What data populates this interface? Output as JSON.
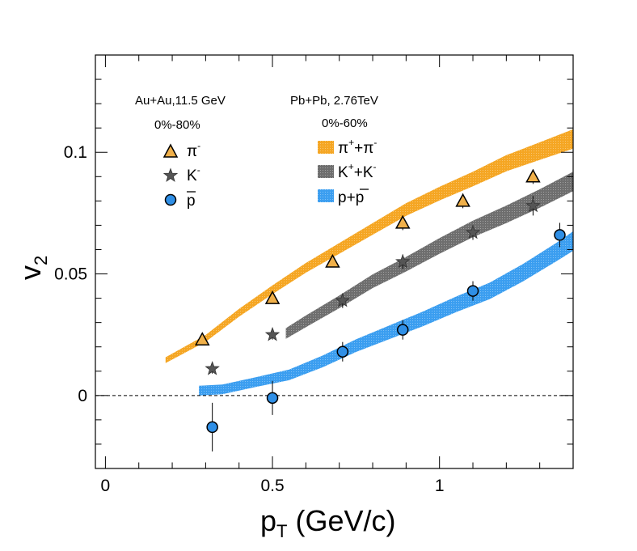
{
  "chart_data": {
    "type": "scatter",
    "xlabel": {
      "main": "p",
      "sub": "T",
      "rest": " (GeV/c)"
    },
    "ylabel": {
      "main": "v",
      "sub": "2"
    },
    "xlim": [
      -0.03,
      1.4
    ],
    "ylim": [
      -0.03,
      0.14
    ],
    "x_ticks": [
      {
        "value": 0,
        "label": "0"
      },
      {
        "value": 0.5,
        "label": "0.5"
      },
      {
        "value": 1,
        "label": "1"
      }
    ],
    "y_ticks": [
      {
        "value": 0,
        "label": "0"
      },
      {
        "value": 0.05,
        "label": "0.05"
      },
      {
        "value": 0.1,
        "label": "0.1"
      }
    ],
    "reference_line": {
      "y": 0,
      "style": "dashed"
    },
    "annotations": {
      "auau_title": "Au+Au,11.5 GeV",
      "auau_centrality": "0%-80%",
      "pbpb_title": "Pb+Pb, 2.76TeV",
      "pbpb_centrality": "0%-60%"
    },
    "series": [
      {
        "name": "pi-",
        "legend": {
          "main": "π",
          "sup": "-"
        },
        "marker": "triangle",
        "color": "#f0b04a",
        "points": [
          {
            "x": 0.29,
            "y": 0.023,
            "err": 0.002
          },
          {
            "x": 0.5,
            "y": 0.04,
            "err": 0.002
          },
          {
            "x": 0.68,
            "y": 0.055,
            "err": 0.002
          },
          {
            "x": 0.89,
            "y": 0.071,
            "err": 0.003
          },
          {
            "x": 1.07,
            "y": 0.08,
            "err": 0.003
          },
          {
            "x": 1.28,
            "y": 0.09,
            "err": 0.003
          }
        ]
      },
      {
        "name": "K-",
        "legend": {
          "main": "K",
          "sup": "-"
        },
        "marker": "star",
        "color": "#555555",
        "points": [
          {
            "x": 0.32,
            "y": 0.011,
            "err": 0.002
          },
          {
            "x": 0.5,
            "y": 0.025,
            "err": 0.002
          },
          {
            "x": 0.71,
            "y": 0.039,
            "err": 0.003
          },
          {
            "x": 0.89,
            "y": 0.055,
            "err": 0.003
          },
          {
            "x": 1.1,
            "y": 0.067,
            "err": 0.003
          },
          {
            "x": 1.28,
            "y": 0.078,
            "err": 0.004
          }
        ]
      },
      {
        "name": "pbar",
        "legend": {
          "main": "p"
        },
        "marker": "circle",
        "color": "#2f8fe6",
        "points": [
          {
            "x": 0.32,
            "y": -0.013,
            "err": 0.01
          },
          {
            "x": 0.5,
            "y": -0.001,
            "err": 0.007
          },
          {
            "x": 0.71,
            "y": 0.018,
            "err": 0.004
          },
          {
            "x": 0.89,
            "y": 0.027,
            "err": 0.004
          },
          {
            "x": 1.1,
            "y": 0.043,
            "err": 0.004
          },
          {
            "x": 1.36,
            "y": 0.066,
            "err": 0.005
          }
        ]
      }
    ],
    "bands": [
      {
        "name": "pi++pi-",
        "legend": {
          "a": "π",
          "a_sup": "+",
          "plus": "+",
          "b": "π",
          "b_sup": "-"
        },
        "color": "#f5a623",
        "x": [
          0.18,
          0.3,
          0.4,
          0.5,
          0.6,
          0.7,
          0.8,
          0.9,
          1.0,
          1.1,
          1.2,
          1.3,
          1.4
        ],
        "y": [
          0.0145,
          0.0235,
          0.034,
          0.0435,
          0.0525,
          0.0605,
          0.0685,
          0.0765,
          0.083,
          0.089,
          0.0955,
          0.1005,
          0.1055
        ],
        "halfwidth": [
          0.0012,
          0.0014,
          0.0016,
          0.0018,
          0.002,
          0.0022,
          0.0024,
          0.0026,
          0.0028,
          0.003,
          0.0033,
          0.0036,
          0.004
        ]
      },
      {
        "name": "K++K-",
        "legend": {
          "a": "K",
          "a_sup": "+",
          "plus": "+",
          "b": "K",
          "b_sup": "-"
        },
        "color": "#6e6e6e",
        "x": [
          0.54,
          0.6,
          0.7,
          0.8,
          0.9,
          1.0,
          1.1,
          1.2,
          1.3,
          1.4
        ],
        "y": [
          0.0255,
          0.0305,
          0.0385,
          0.047,
          0.054,
          0.0615,
          0.0685,
          0.0745,
          0.081,
          0.088
        ],
        "halfwidth": [
          0.0022,
          0.0024,
          0.0026,
          0.0028,
          0.003,
          0.0032,
          0.0034,
          0.0036,
          0.0038,
          0.004
        ]
      },
      {
        "name": "p+pbar",
        "legend": {
          "a": "p",
          "plus": "+",
          "b": "p"
        },
        "color": "#3b9ef0",
        "x": [
          0.28,
          0.35,
          0.45,
          0.55,
          0.65,
          0.75,
          0.85,
          0.95,
          1.05,
          1.15,
          1.25,
          1.35,
          1.4
        ],
        "y": [
          0.002,
          0.0025,
          0.0055,
          0.0085,
          0.014,
          0.0205,
          0.026,
          0.0315,
          0.0375,
          0.043,
          0.0505,
          0.059,
          0.0635
        ],
        "halfwidth": [
          0.002,
          0.002,
          0.002,
          0.0022,
          0.0024,
          0.0026,
          0.0028,
          0.003,
          0.0032,
          0.0034,
          0.0036,
          0.0038,
          0.004
        ]
      }
    ]
  }
}
